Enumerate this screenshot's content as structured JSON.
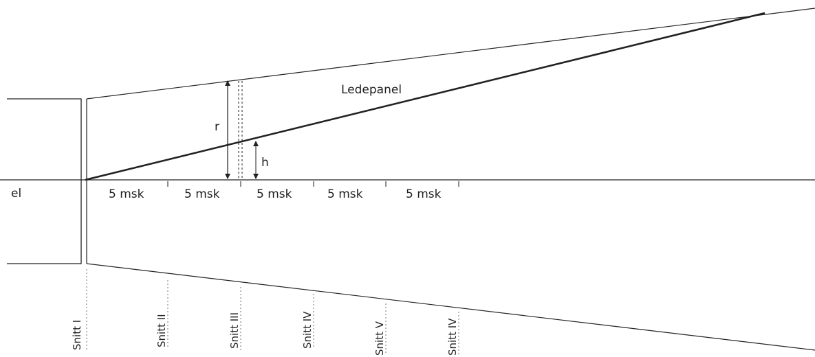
{
  "labels": {
    "panel": "Ledepanel",
    "r": "r",
    "h": "h",
    "left": "el"
  },
  "segments": [
    "5 msk",
    "5 msk",
    "5 msk",
    "5 msk",
    "5 msk"
  ],
  "sections": [
    "Snitt I",
    "Snitt II",
    "Snitt III",
    "Snitt IV",
    "Snitt V",
    "Snitt IV"
  ],
  "colors": {
    "line": "#222222",
    "dotted": "#777777"
  }
}
